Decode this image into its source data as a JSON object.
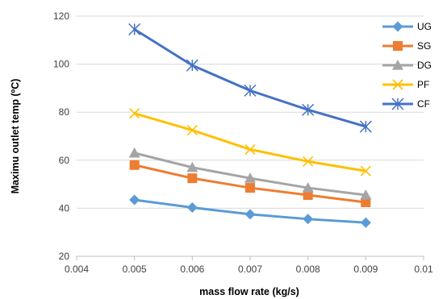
{
  "chart_data": {
    "type": "line",
    "xlabel": "mass flow rate (kg/s)",
    "ylabel": "Maximu outlet temp (ºC)",
    "xlim": [
      0.004,
      0.01
    ],
    "ylim": [
      20,
      120
    ],
    "x_ticks": [
      "0.004",
      "0.005",
      "0.006",
      "0.007",
      "0.008",
      "0.009",
      "0.01"
    ],
    "y_ticks": [
      "20",
      "40",
      "60",
      "80",
      "100",
      "120"
    ],
    "grid": "horizontal",
    "legend_position": "right",
    "x": [
      0.005,
      0.006,
      0.007,
      0.008,
      0.009
    ],
    "series": [
      {
        "name": "UG",
        "values": [
          43.5,
          40.3,
          37.5,
          35.5,
          34.0
        ],
        "color": "#5B9BD5",
        "marker": "diamond"
      },
      {
        "name": "SG",
        "values": [
          58.0,
          52.5,
          48.5,
          45.5,
          42.5
        ],
        "color": "#ED7D31",
        "marker": "square"
      },
      {
        "name": "DG",
        "values": [
          63.0,
          57.0,
          52.5,
          48.5,
          45.5
        ],
        "color": "#A5A5A5",
        "marker": "triangle"
      },
      {
        "name": "PF",
        "values": [
          79.5,
          72.5,
          64.5,
          59.5,
          55.5
        ],
        "color": "#FFC000",
        "marker": "x"
      },
      {
        "name": "CF",
        "values": [
          114.5,
          99.5,
          89.0,
          81.0,
          74.0
        ],
        "color": "#4472C4",
        "marker": "star"
      }
    ]
  }
}
